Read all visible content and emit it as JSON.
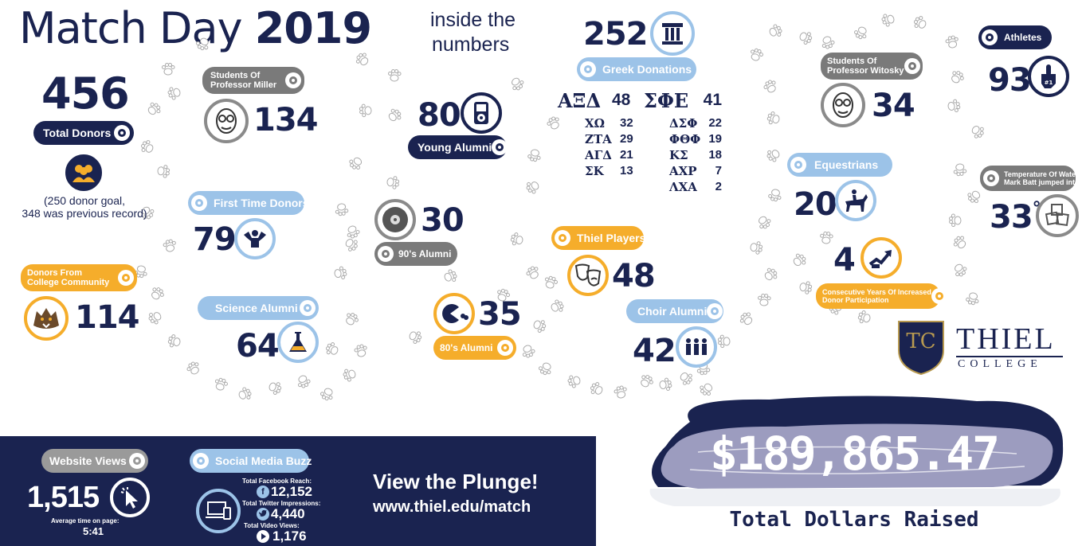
{
  "header": {
    "title_main": "Match Day",
    "title_year": "2019",
    "subtitle_line1": "inside the",
    "subtitle_line2": "numbers"
  },
  "total_donors": {
    "value": "456",
    "label": "Total Donors",
    "note_line1": "(250 donor goal,",
    "note_line2": "348 was previous record)"
  },
  "professor_miller": {
    "label_line1": "Students Of",
    "label_line2": "Professor Miller",
    "value": "134"
  },
  "first_time_donors": {
    "label": "First Time Donors",
    "value": "79"
  },
  "college_community": {
    "label_line1": "Donors From",
    "label_line2": "College Community",
    "value": "114"
  },
  "science_alumni": {
    "label": "Science Alumni",
    "value": "64"
  },
  "young_alumni": {
    "label": "Young Alumni",
    "value": "80"
  },
  "nineties_alumni": {
    "label": "90's Alumni",
    "value": "30"
  },
  "eighties_alumni": {
    "label": "80's Alumni",
    "value": "35"
  },
  "greek": {
    "value": "252",
    "label": "Greek Donations",
    "rows": [
      {
        "name": "ΑΞΔ",
        "value": "48",
        "name2": "ΣΦΕ",
        "value2": "41"
      },
      {
        "name": "ΧΩ",
        "value": "32",
        "name2": "ΔΣΦ",
        "value2": "22"
      },
      {
        "name": "ΖΤΑ",
        "value": "29",
        "name2": "ΦΘΦ",
        "value2": "19"
      },
      {
        "name": "ΑΓΔ",
        "value": "21",
        "name2": "ΚΣ",
        "value2": "18"
      },
      {
        "name": "ΣΚ",
        "value": "13",
        "name2": "ΑΧΡ",
        "value2": "7"
      },
      {
        "name2": "ΛΧΑ",
        "value2": "2"
      }
    ]
  },
  "thiel_players": {
    "label": "Thiel Players",
    "value": "48"
  },
  "choir_alumni": {
    "label": "Choir Alumni",
    "value": "42"
  },
  "professor_witosky": {
    "label_line1": "Students Of",
    "label_line2": "Professor Witosky",
    "value": "34"
  },
  "equestrians": {
    "label": "Equestrians",
    "value": "20"
  },
  "consecutive_years": {
    "value": "4",
    "label_line1": "Consecutive Years Of Increased",
    "label_line2": "Donor Participation"
  },
  "athletes": {
    "label": "Athletes",
    "value": "93"
  },
  "water_temp": {
    "label_line1": "Temperature Of Water",
    "label_line2": "Mark Batt jumped into",
    "value": "33",
    "unit": "°"
  },
  "logo": {
    "monogram": "TC",
    "name": "THIEL",
    "sub": "COLLEGE"
  },
  "total_raised": {
    "value": "$189,865.47",
    "label": "Total Dollars Raised"
  },
  "footer": {
    "website_views_label": "Website Views",
    "website_views_value": "1,515",
    "time_label": "Average time on page:",
    "time_value": "5:41",
    "social_label": "Social Media Buzz",
    "facebook_label": "Total Facebook Reach:",
    "facebook_value": "12,152",
    "twitter_label": "Total Twitter Impressions:",
    "twitter_value": "4,440",
    "video_label": "Total Video Views:",
    "video_value": "1,176",
    "plunge_line1": "View the Plunge!",
    "plunge_line2": "www.thiel.edu/match"
  },
  "colors": {
    "navy": "#1a2350",
    "gold": "#f5ad2b",
    "light_blue": "#9cc3e8",
    "gray": "#7a7a7a",
    "lake": "#9c9cbf"
  },
  "icons": [
    "donors-group-icon",
    "professor-face-icon",
    "strongman-icon",
    "tomcat-mascot-icon",
    "flask-icon",
    "ipod-icon",
    "cd-icon",
    "pacman-icon",
    "greek-column-icon",
    "theater-mask-icon",
    "choir-icon",
    "horse-rider-icon",
    "growth-arrow-icon",
    "foam-finger-icon",
    "ice-cubes-icon",
    "cursor-click-icon",
    "devices-icon",
    "facebook-icon",
    "twitter-icon",
    "play-icon"
  ]
}
